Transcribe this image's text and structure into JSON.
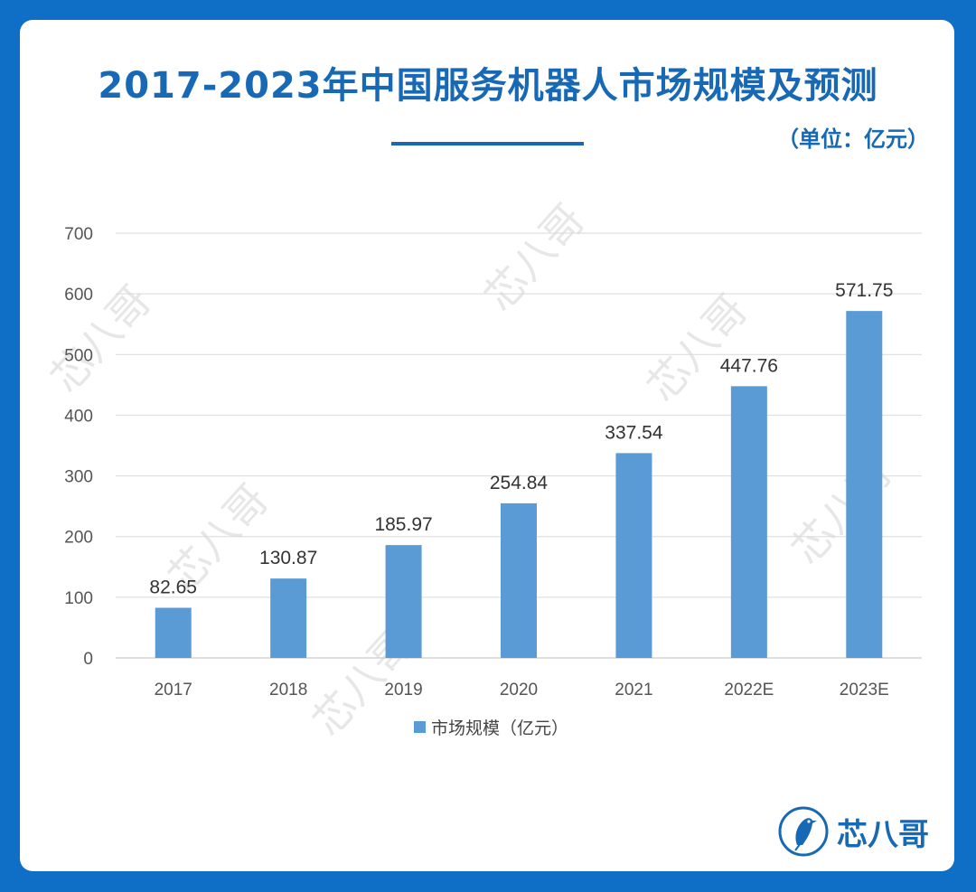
{
  "page": {
    "title": "2017-2023年中国服务机器人市场规模及预测",
    "unit": "（单位：亿元）"
  },
  "brand": {
    "name": "芯八哥",
    "logo_icon": "bird-circle-icon"
  },
  "watermark": "芯八哥",
  "colors": {
    "background": "#0f6fc6",
    "title": "#1769b5",
    "bar": "#5b9bd5"
  },
  "chart_data": {
    "type": "bar",
    "categories": [
      "2017",
      "2018",
      "2019",
      "2020",
      "2021",
      "2022E",
      "2023E"
    ],
    "series": [
      {
        "name": "市场规模（亿元）",
        "values": [
          82.65,
          130.87,
          185.97,
          254.84,
          337.54,
          447.76,
          571.75
        ]
      }
    ],
    "data_labels": [
      "82.65",
      "130.87",
      "185.97",
      "254.84",
      "337.54",
      "447.76",
      "571.75"
    ],
    "yticks": [
      0,
      100,
      200,
      300,
      400,
      500,
      600,
      700
    ],
    "ylim": [
      0,
      700
    ],
    "grid": true,
    "legend": "bottom",
    "title": "2017-2023年中国服务机器人市场规模及预测"
  }
}
